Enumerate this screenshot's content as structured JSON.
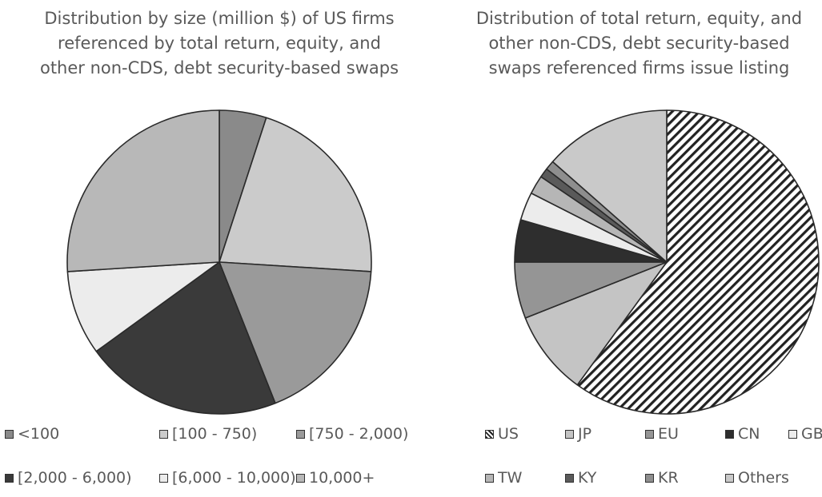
{
  "chart_data": [
    {
      "type": "pie",
      "title_lines": [
        "Distribution by size (million $) of US firms",
        "referenced by total return, equity, and",
        "other non-CDS, debt security-based swaps"
      ],
      "categories": [
        "<100",
        "[100 - 750)",
        "[750 - 2,000)",
        "[2,000 - 6,000)",
        "[6,000 - 10,000)",
        "10,000+"
      ],
      "values": [
        5,
        21,
        18,
        21,
        9,
        26
      ],
      "unit": "percent",
      "colors": [
        "#8a8a8a",
        "#cbcbcb",
        "#9a9a9a",
        "#3a3a3a",
        "#ececec",
        "#b8b8b8"
      ],
      "legend_placement": "bottom"
    },
    {
      "type": "pie",
      "title_lines": [
        "Distribution of total return, equity, and",
        "other non-CDS, debt security-based",
        "swaps referenced firms issue listing"
      ],
      "categories": [
        "US",
        "JP",
        "EU",
        "CN",
        "GB",
        "TW",
        "KY",
        "KR",
        "Others"
      ],
      "values": [
        60,
        9,
        6,
        4.5,
        3,
        2,
        1,
        1,
        13.5
      ],
      "unit": "percent",
      "colors": [
        "hatch",
        "#c4c4c4",
        "#959595",
        "#2e2e2e",
        "#ececec",
        "#b6b6b6",
        "#5a5a5a",
        "#8e8e8e",
        "#c9c9c9"
      ],
      "legend_placement": "bottom"
    }
  ]
}
